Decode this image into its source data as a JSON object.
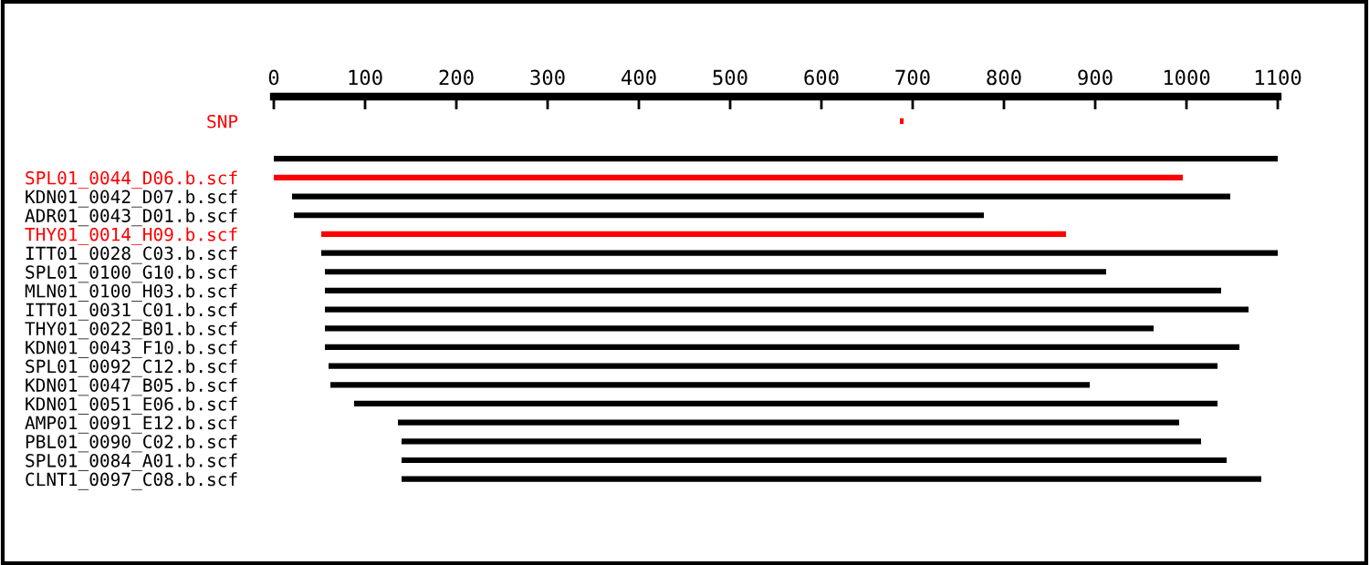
{
  "chart_data": {
    "type": "bar",
    "orientation": "horizontal",
    "categories": [
      "SNP",
      null,
      null,
      "SPL01_0044_D06.b.scf",
      "KDN01_0042_D07.b.scf",
      "ADR01_0043_D01.b.scf",
      "THY01_0014_H09.b.scf",
      "ITT01_0028_C03.b.scf",
      "SPL01_0100_G10.b.scf",
      "MLN01_0100_H03.b.scf",
      "ITT01_0031_C01.b.scf",
      "THY01_0022_B01.b.scf",
      "KDN01_0043_F10.b.scf",
      "SPL01_0092_C12.b.scf",
      "KDN01_0047_B05.b.scf",
      "KDN01_0051_E06.b.scf",
      "AMP01_0091_E12.b.scf",
      "PBL01_0090_C02.b.scf",
      "SPL01_0084_A01.b.scf",
      "CLNT1_0097_C08.b.scf"
    ],
    "base": [
      686,
      null,
      0,
      0,
      20,
      22,
      52,
      52,
      56,
      56,
      56,
      56,
      56,
      60,
      62,
      88,
      136,
      140,
      140,
      140
    ],
    "values": [
      4,
      null,
      1100,
      996,
      1028,
      756,
      816,
      1048,
      856,
      982,
      1012,
      908,
      1002,
      974,
      832,
      946,
      856,
      876,
      904,
      942
    ],
    "colors": [
      "#ff0000",
      "#000000",
      "#000000",
      "#ff0000",
      "#000000",
      "#000000",
      "#ff0000",
      "#000000",
      "#000000",
      "#000000",
      "#000000",
      "#000000",
      "#000000",
      "#000000",
      "#000000",
      "#000000",
      "#000000",
      "#000000",
      "#000000",
      "#000000"
    ],
    "xlim": [
      0,
      1100
    ],
    "xticks": [
      0,
      100,
      200,
      300,
      400,
      500,
      600,
      700,
      800,
      900,
      1000,
      1100
    ],
    "grid": false
  }
}
